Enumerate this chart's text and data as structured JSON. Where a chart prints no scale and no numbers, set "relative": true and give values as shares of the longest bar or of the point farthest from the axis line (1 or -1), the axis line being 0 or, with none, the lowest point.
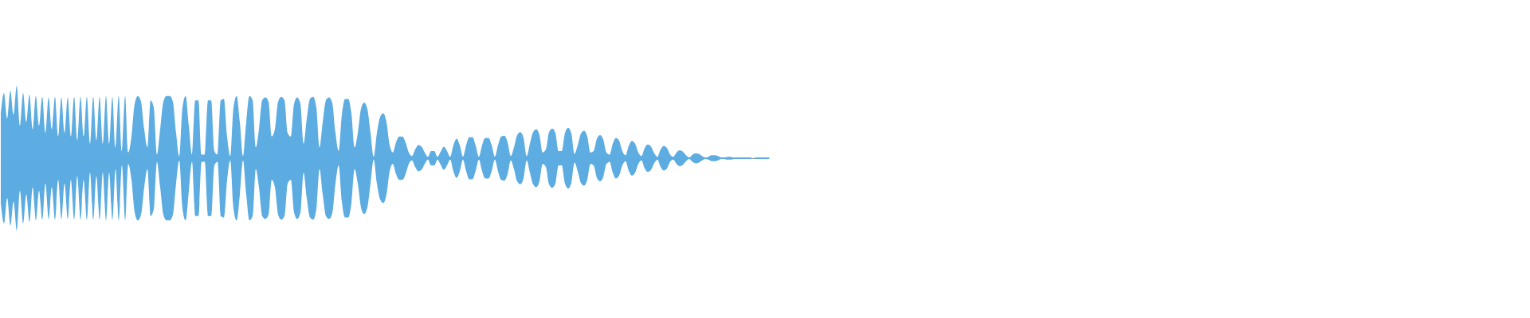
{
  "chart_data": {
    "type": "area",
    "relative": true,
    "categories": [
      null,
      null,
      null,
      null,
      null,
      null,
      null,
      null,
      null,
      null,
      null,
      null,
      null,
      null,
      null,
      null,
      null,
      null,
      null,
      null,
      null,
      null,
      null,
      null,
      null,
      null,
      null,
      null,
      null,
      null,
      null,
      null,
      null,
      null,
      null,
      null,
      null,
      null,
      null,
      null,
      null,
      null,
      null,
      null,
      null,
      null,
      null,
      null,
      null,
      null,
      null,
      null,
      null,
      null,
      null,
      null,
      null,
      null,
      null,
      null,
      null,
      null,
      null,
      null,
      null,
      null,
      null,
      null,
      null,
      null,
      null,
      null,
      null,
      null,
      null,
      null,
      null,
      null,
      null,
      null,
      null,
      null,
      null,
      null,
      null,
      null,
      null,
      null,
      null,
      null,
      null,
      null,
      null,
      null,
      null,
      null,
      null,
      null,
      null,
      null,
      null,
      null,
      null,
      null,
      null,
      null,
      null,
      null,
      null,
      null,
      null,
      null,
      null,
      null,
      null,
      null,
      null,
      null,
      null,
      null,
      null,
      null,
      null,
      null,
      null,
      null,
      null,
      null,
      null,
      null,
      null,
      null,
      null,
      null,
      null,
      null,
      null,
      null,
      null,
      null,
      null,
      null,
      null,
      null,
      null,
      null,
      null,
      null,
      null,
      null,
      null,
      null,
      null,
      null,
      null,
      null,
      null,
      null,
      null,
      null,
      null,
      null,
      null,
      null,
      null,
      null,
      null,
      null,
      null,
      null,
      null,
      null,
      null,
      null,
      null,
      null,
      null,
      null,
      null,
      null,
      null,
      null,
      null,
      null,
      null,
      null,
      null,
      null,
      null,
      null,
      null,
      null,
      null,
      null,
      null,
      null,
      null,
      null,
      null,
      null,
      null,
      null,
      null,
      null,
      null,
      null,
      null,
      null,
      null,
      null,
      null,
      null,
      null,
      null,
      null,
      null,
      null,
      null,
      null,
      null,
      null,
      null,
      null,
      null,
      null,
      null,
      null,
      null,
      null,
      null,
      null,
      null,
      null,
      null,
      null,
      null,
      null,
      null,
      null,
      null,
      null,
      null
    ],
    "series": [
      {
        "color": "#5dade2",
        "values": [
          0.62,
          0.9,
          0.55,
          0.93,
          0.6,
          1,
          0.45,
          0.9,
          0.5,
          0.88,
          0.4,
          0.86,
          0.45,
          0.85,
          0.35,
          0.84,
          0.4,
          0.85,
          0.3,
          0.84,
          0.35,
          0.84,
          0.3,
          0.85,
          0.25,
          0.85,
          0.3,
          0.85,
          0.2,
          0.85,
          0.25,
          0.85,
          0.2,
          0.86,
          0.2,
          0.85,
          0.15,
          0.86,
          0.1,
          0.86,
          0.08,
          0.3,
          0.75,
          0.86,
          0.78,
          0.4,
          0.15,
          0.8,
          0.7,
          0.05,
          0.4,
          0.78,
          0.86,
          0.86,
          0.78,
          0.35,
          0.03,
          0.7,
          0.86,
          0.45,
          0.05,
          0.8,
          0.8,
          0.05,
          0.05,
          0.8,
          0.8,
          0.1,
          0.05,
          0.8,
          0.82,
          0.3,
          0.03,
          0.7,
          0.86,
          0.5,
          0.03,
          0.5,
          0.86,
          0.8,
          0.15,
          0.4,
          0.8,
          0.84,
          0.78,
          0.3,
          0.4,
          0.78,
          0.85,
          0.8,
          0.35,
          0.3,
          0.75,
          0.84,
          0.75,
          0.2,
          0.55,
          0.82,
          0.85,
          0.7,
          0.15,
          0.5,
          0.8,
          0.84,
          0.76,
          0.35,
          0.1,
          0.6,
          0.82,
          0.82,
          0.62,
          0.15,
          0.35,
          0.68,
          0.77,
          0.68,
          0.35,
          0.02,
          0.35,
          0.57,
          0.62,
          0.5,
          0.18,
          0.08,
          0.22,
          0.3,
          0.3,
          0.22,
          0.08,
          0.03,
          0.12,
          0.18,
          0.16,
          0.08,
          0.02,
          0.1,
          0.1,
          0.02,
          0.09,
          0.16,
          0.1,
          0.02,
          0.18,
          0.27,
          0.18,
          0.02,
          0.18,
          0.29,
          0.29,
          0.17,
          0.02,
          0.18,
          0.28,
          0.28,
          0.18,
          0.02,
          0.18,
          0.3,
          0.31,
          0.22,
          0.03,
          0.15,
          0.32,
          0.36,
          0.28,
          0.03,
          0.2,
          0.36,
          0.4,
          0.32,
          0.08,
          0.12,
          0.36,
          0.41,
          0.35,
          0.1,
          0.1,
          0.35,
          0.42,
          0.34,
          0.06,
          0.18,
          0.34,
          0.38,
          0.3,
          0.08,
          0.1,
          0.27,
          0.32,
          0.26,
          0.08,
          0.05,
          0.2,
          0.28,
          0.24,
          0.1,
          0.04,
          0.17,
          0.24,
          0.2,
          0.08,
          0.03,
          0.14,
          0.19,
          0.16,
          0.07,
          0.02,
          0.12,
          0.17,
          0.14,
          0.05,
          0.02,
          0.08,
          0.11,
          0.09,
          0.04,
          0.01,
          0.05,
          0.07,
          0.06,
          0.03,
          0.01,
          0.02,
          0.04,
          0.04,
          0.03,
          0.01,
          0.01,
          0.02,
          0.02,
          0.01,
          0.01,
          0.01,
          0.01,
          0.01,
          0.01,
          0,
          0.01,
          0.01,
          0.01,
          0.01,
          0.01
        ]
      },
      {
        "color": "#5cace1",
        "values": [
          -0.62,
          -0.9,
          -0.55,
          -0.93,
          -0.6,
          -1,
          -0.45,
          -0.9,
          -0.5,
          -0.88,
          -0.4,
          -0.86,
          -0.45,
          -0.85,
          -0.35,
          -0.84,
          -0.4,
          -0.85,
          -0.3,
          -0.84,
          -0.35,
          -0.84,
          -0.3,
          -0.85,
          -0.25,
          -0.85,
          -0.3,
          -0.85,
          -0.2,
          -0.85,
          -0.25,
          -0.85,
          -0.2,
          -0.86,
          -0.2,
          -0.85,
          -0.15,
          -0.86,
          -0.1,
          -0.86,
          -0.08,
          -0.3,
          -0.75,
          -0.86,
          -0.78,
          -0.4,
          -0.15,
          -0.8,
          -0.7,
          -0.05,
          -0.4,
          -0.78,
          -0.86,
          -0.86,
          -0.78,
          -0.35,
          -0.03,
          -0.7,
          -0.86,
          -0.45,
          -0.05,
          -0.8,
          -0.8,
          -0.05,
          -0.05,
          -0.8,
          -0.8,
          -0.1,
          -0.05,
          -0.8,
          -0.82,
          -0.3,
          -0.03,
          -0.7,
          -0.86,
          -0.5,
          -0.03,
          -0.5,
          -0.86,
          -0.8,
          -0.15,
          -0.4,
          -0.8,
          -0.84,
          -0.78,
          -0.3,
          -0.4,
          -0.78,
          -0.85,
          -0.8,
          -0.35,
          -0.3,
          -0.75,
          -0.84,
          -0.75,
          -0.2,
          -0.55,
          -0.82,
          -0.85,
          -0.7,
          -0.15,
          -0.5,
          -0.8,
          -0.84,
          -0.76,
          -0.35,
          -0.1,
          -0.6,
          -0.82,
          -0.82,
          -0.62,
          -0.15,
          -0.35,
          -0.68,
          -0.77,
          -0.68,
          -0.35,
          -0.02,
          -0.35,
          -0.57,
          -0.62,
          -0.5,
          -0.18,
          -0.08,
          -0.22,
          -0.3,
          -0.3,
          -0.22,
          -0.08,
          -0.03,
          -0.12,
          -0.18,
          -0.16,
          -0.08,
          -0.02,
          -0.1,
          -0.1,
          -0.02,
          -0.09,
          -0.16,
          -0.1,
          -0.02,
          -0.18,
          -0.27,
          -0.18,
          -0.02,
          -0.18,
          -0.29,
          -0.29,
          -0.17,
          -0.02,
          -0.18,
          -0.28,
          -0.28,
          -0.18,
          -0.02,
          -0.18,
          -0.3,
          -0.31,
          -0.22,
          -0.03,
          -0.15,
          -0.32,
          -0.36,
          -0.28,
          -0.03,
          -0.2,
          -0.36,
          -0.4,
          -0.32,
          -0.08,
          -0.12,
          -0.36,
          -0.41,
          -0.35,
          -0.1,
          -0.1,
          -0.35,
          -0.42,
          -0.34,
          -0.06,
          -0.18,
          -0.34,
          -0.38,
          -0.3,
          -0.08,
          -0.1,
          -0.27,
          -0.32,
          -0.26,
          -0.08,
          -0.05,
          -0.2,
          -0.28,
          -0.24,
          -0.1,
          -0.04,
          -0.17,
          -0.24,
          -0.2,
          -0.08,
          -0.03,
          -0.14,
          -0.19,
          -0.16,
          -0.07,
          -0.02,
          -0.12,
          -0.17,
          -0.14,
          -0.05,
          -0.02,
          -0.08,
          -0.11,
          -0.09,
          -0.04,
          -0.01,
          -0.05,
          -0.07,
          -0.06,
          -0.03,
          -0.01,
          -0.02,
          -0.04,
          -0.04,
          -0.03,
          -0.01,
          -0.01,
          -0.02,
          -0.02,
          -0.01,
          -0.01,
          -0.01,
          -0.01,
          -0.01,
          -0.01,
          0,
          -0.01,
          -0.01,
          -0.01,
          -0.01,
          -0.01
        ]
      }
    ]
  }
}
